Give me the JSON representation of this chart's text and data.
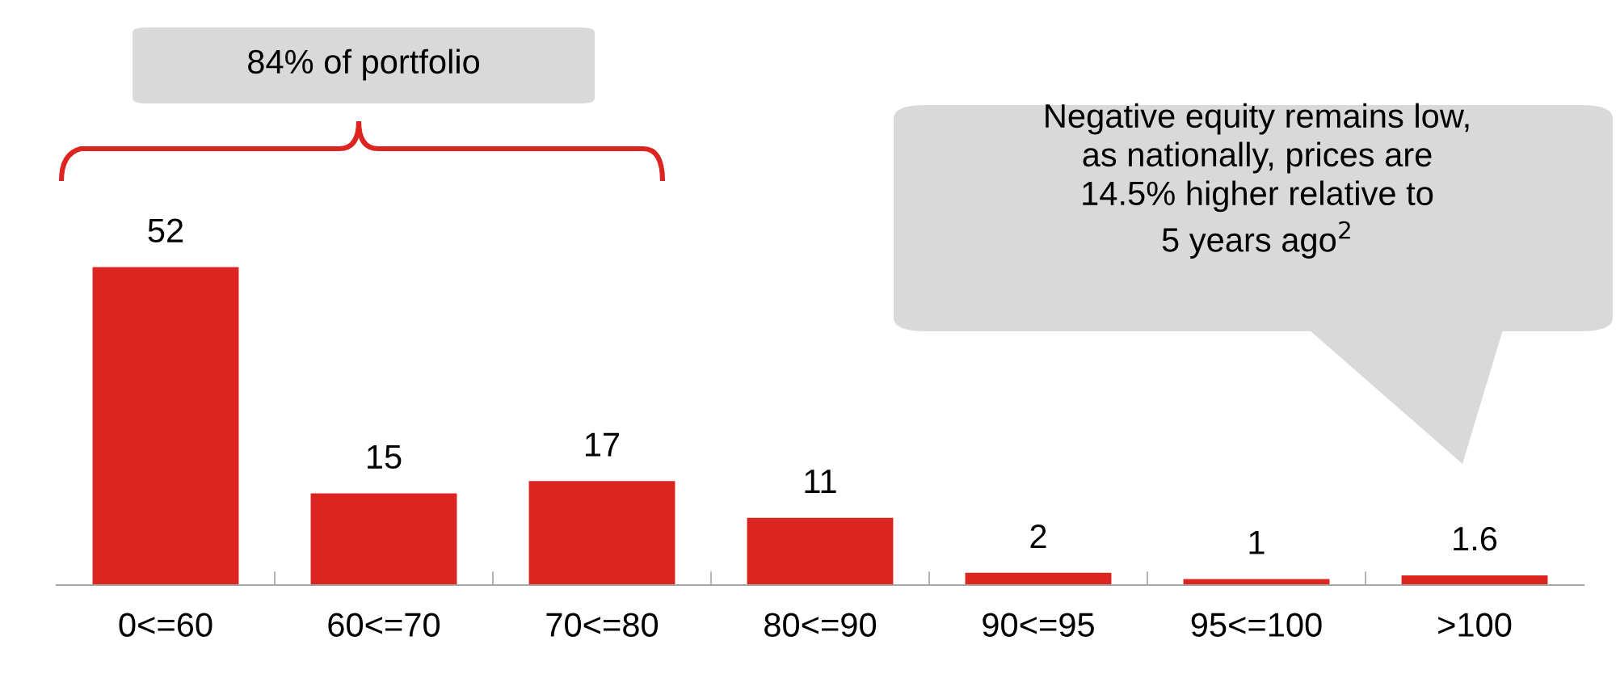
{
  "chart_data": {
    "type": "bar",
    "categories": [
      "0<=60",
      "60<=70",
      "70<=80",
      "80<=90",
      "90<=95",
      "95<=100",
      ">100"
    ],
    "values": [
      52,
      15,
      17,
      11,
      2,
      1,
      1.6
    ],
    "color": "#dc2421",
    "data_labels": true,
    "annotations": [
      "84% of portfolio",
      "Negative equity remains low,\nas nationally, prices are\n14.5% higher relative to\n5 years ago$^{2}$"
    ]
  }
}
